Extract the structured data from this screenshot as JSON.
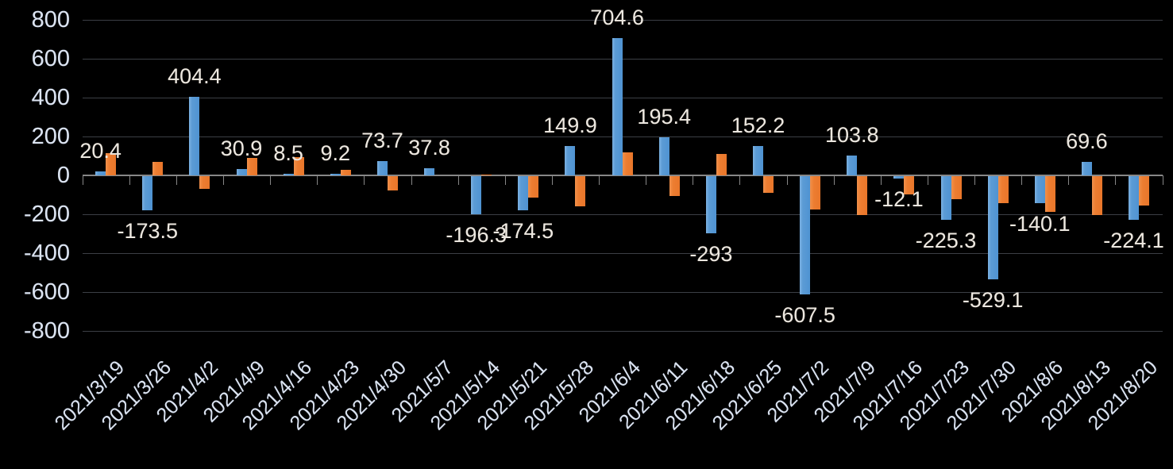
{
  "chart_data": {
    "type": "bar",
    "title": "",
    "legend": "none",
    "grid": true,
    "background": "#000000",
    "x_tick_rotation_deg": 45,
    "categories": [
      "2021/3/19",
      "2021/3/26",
      "2021/4/2",
      "2021/4/9",
      "2021/4/16",
      "2021/4/23",
      "2021/4/30",
      "2021/5/7",
      "2021/5/14",
      "2021/5/21",
      "2021/5/28",
      "2021/6/4",
      "2021/6/11",
      "2021/6/18",
      "2021/6/25",
      "2021/7/2",
      "2021/7/9",
      "2021/7/16",
      "2021/7/23",
      "2021/7/30",
      "2021/8/6",
      "2021/8/13",
      "2021/8/20"
    ],
    "series": [
      {
        "key": "series1",
        "color": "#5B9BD5",
        "values": [
          20.4,
          -173.5,
          404.4,
          30.9,
          8.5,
          9.2,
          73.7,
          37.8,
          -196.3,
          -174.5,
          149.9,
          704.6,
          195.4,
          -293,
          152.2,
          -607.5,
          103.8,
          -12.1,
          -225.3,
          -529.1,
          -140.1,
          69.6,
          -224.1
        ],
        "data_labels": [
          "20.4",
          "-173.5",
          "404.4",
          "30.9",
          "8.5",
          "9.2",
          "73.7",
          "37.8",
          "-196.3",
          "-174.5",
          "149.9",
          "704.6",
          "195.4",
          "-293",
          "152.2",
          "-607.5",
          "103.8",
          "-12.1",
          "-225.3",
          "-529.1",
          "-140.1",
          "69.6",
          "-224.1"
        ]
      },
      {
        "key": "series2",
        "color": "#ED7D31",
        "values_estimated": true,
        "values": [
          115,
          70,
          -65,
          90,
          95,
          30,
          -75,
          0,
          5,
          -110,
          -155,
          120,
          -100,
          110,
          -85,
          -170,
          -200,
          -95,
          -120,
          -140,
          -185,
          -200,
          -150
        ],
        "data_labels": null
      }
    ],
    "y_axis": {
      "min": -800,
      "max": 800,
      "step": 200,
      "ticks": [
        800,
        600,
        400,
        200,
        0,
        -200,
        -400,
        -600,
        -800
      ]
    }
  },
  "colors": {
    "series1": "#5B9BD5",
    "series2": "#ED7D31",
    "background": "#000000",
    "gridline": "#3c3f45",
    "axis": "#878787",
    "axis_text": "#dce4f1",
    "data_label_text": "#ece8e1"
  }
}
